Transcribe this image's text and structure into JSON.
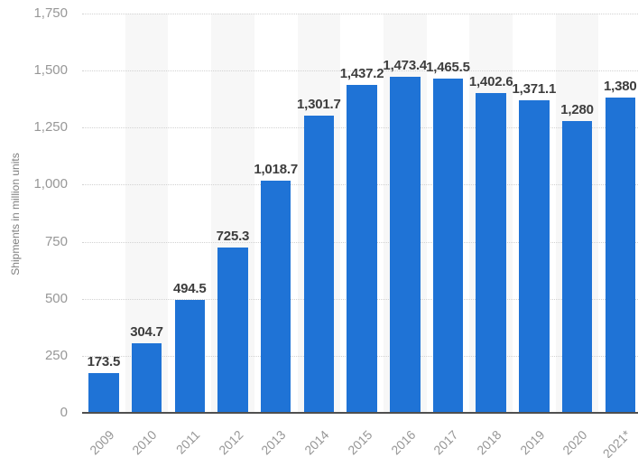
{
  "chart_data": {
    "type": "bar",
    "title": "",
    "xlabel": "",
    "ylabel": "Shipments in million units",
    "categories": [
      "2009",
      "2010",
      "2011",
      "2012",
      "2013",
      "2014",
      "2015",
      "2016",
      "2017",
      "2018",
      "2019",
      "2020",
      "2021*"
    ],
    "values": [
      173.5,
      304.7,
      494.5,
      725.3,
      1018.7,
      1301.7,
      1437.2,
      1473.4,
      1465.5,
      1402.6,
      1371.1,
      1280,
      1380
    ],
    "value_labels": [
      "173.5",
      "304.7",
      "494.5",
      "725.3",
      "1,018.7",
      "1,301.7",
      "1,437.2",
      "1,473.4",
      "1,465.5",
      "1,402.6",
      "1,371.1",
      "1,280",
      "1,380"
    ],
    "y_ticks": [
      {
        "label": "1,750",
        "value": 1750
      },
      {
        "label": "1,500",
        "value": 1500
      },
      {
        "label": "1,250",
        "value": 1250
      },
      {
        "label": "1,000",
        "value": 1000
      },
      {
        "label": "750",
        "value": 750
      },
      {
        "label": "500",
        "value": 500
      },
      {
        "label": "250",
        "value": 250
      },
      {
        "label": "0",
        "value": 0
      }
    ],
    "ylim": [
      0,
      1750
    ],
    "grid": "dotted-horizontal",
    "legend": "none",
    "column_striping": "alternate-even-years",
    "colors": {
      "bar": "#1f73d6",
      "column_stripe": "#f7f7f7",
      "gridline": "#d2d2d2",
      "axis_line": "#4f4f4f",
      "value_label": "#3d3d3d",
      "tick_label": "#979797",
      "axis_title": "#7f7f7f",
      "background": "#ffffff"
    }
  }
}
